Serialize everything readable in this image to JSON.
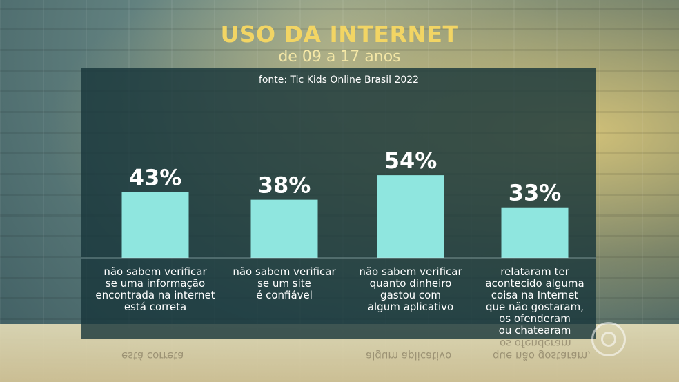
{
  "header": {
    "title": "USO DA INTERNET",
    "subtitle": "de 09 a 17 anos",
    "source": "fonte: Tic Kids Online Brasil 2022"
  },
  "reflection_texts": [
    "está correta",
    "algum aplicativo",
    "que não gostaram,",
    "os ofenderam"
  ],
  "chart_data": {
    "type": "bar",
    "categories": [
      "não sabem verificar\nse uma informação\nencontrada na internet\nestá correta",
      "não sabem verificar\nse um site\né confiável",
      "não sabem verificar\nquanto dinheiro\ngastou com\nalgum aplicativo",
      "relataram ter\nacontecido alguma\ncoisa na Internet\nque não gostaram,\nos ofenderam\nou chatearam"
    ],
    "values": [
      43,
      38,
      54,
      33
    ],
    "value_labels": [
      "43%",
      "38%",
      "54%",
      "33%"
    ],
    "unit": "%",
    "title": "USO DA INTERNET",
    "xlabel": "",
    "ylabel": "",
    "ylim": [
      0,
      100
    ],
    "grid": false,
    "colors": {
      "bar": "#8fe6df",
      "panel": "#16343a",
      "title": "#f2d564",
      "text": "#ffffff"
    }
  }
}
